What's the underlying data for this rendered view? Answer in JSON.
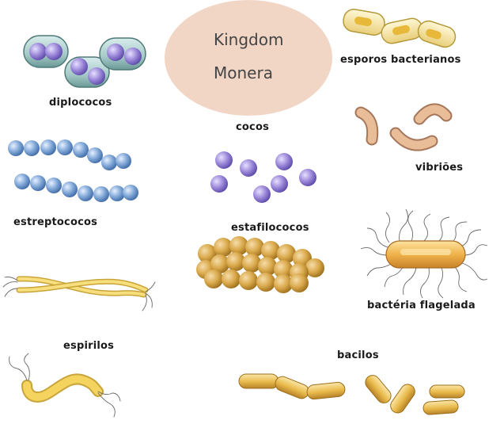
{
  "title": {
    "line1": "Kingdom",
    "line2": "Monera"
  },
  "labels": {
    "diplococos": "diplococos",
    "esporos": "esporos bacterianos",
    "cocos": "cocos",
    "vibrioes": "vibriões",
    "estreptococos": "estreptococos",
    "estafilococos": "estafilococos",
    "flagelada": "bactéria flagelada",
    "espirilos": "espirilos",
    "bacilos": "bacilos"
  },
  "colors": {
    "title_circle": "#f1d6c6",
    "coccus_purple": "#9a86d8",
    "strep_blue": "#7fa6d6",
    "staph_gold": "#d9a84a",
    "spore_yellow": "#f2d36b",
    "vibrio_tan": "#e2b58e",
    "spirillum_yellow": "#f0d060",
    "bacillus_gold": "#e8b94a"
  }
}
